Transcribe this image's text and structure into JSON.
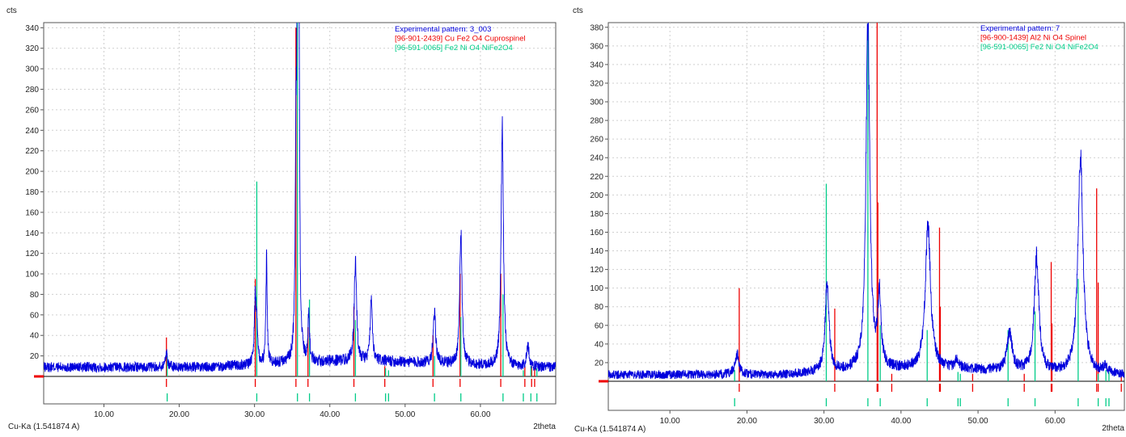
{
  "chart_data": [
    {
      "type": "line",
      "xlabel": "2theta",
      "ylabel": "cts",
      "xlim": [
        2,
        70
      ],
      "ylim": [
        0,
        345
      ],
      "x_ticks": [
        "10.00",
        "20.00",
        "30.00",
        "40.00",
        "50.00",
        "60.00"
      ],
      "y_ticks": [
        "20",
        "40",
        "60",
        "80",
        "100",
        "120",
        "140",
        "160",
        "180",
        "200",
        "220",
        "240",
        "260",
        "280",
        "300",
        "320",
        "340"
      ],
      "footer": "Cu-Ka (1.541874 A)",
      "legend_position": "top-right",
      "grid": true,
      "series": [
        {
          "name": "Experimental pattern: 3_003",
          "color": "#0000dd",
          "baseline": 9,
          "peaks": [
            [
              18.3,
              14,
              0.18
            ],
            [
              30.1,
              60,
              0.15
            ],
            [
              30.3,
              35,
              0.12
            ],
            [
              31.6,
              105,
              0.1
            ],
            [
              35.5,
              178,
              0.12
            ],
            [
              35.7,
              330,
              0.1
            ],
            [
              35.9,
              310,
              0.1
            ],
            [
              37.2,
              48,
              0.12
            ],
            [
              43.4,
              100,
              0.18
            ],
            [
              45.5,
              65,
              0.15
            ],
            [
              53.9,
              48,
              0.2
            ],
            [
              57.4,
              130,
              0.18
            ],
            [
              62.9,
              240,
              0.18
            ],
            [
              66.3,
              20,
              0.2
            ]
          ]
        },
        {
          "name": "[96-901-2439] Cu Fe2 O4  Cuprospinel",
          "color": "#ee0000",
          "sticks": [
            [
              18.3,
              38
            ],
            [
              30.1,
              95
            ],
            [
              35.5,
              340
            ],
            [
              37.1,
              48
            ],
            [
              43.2,
              68
            ],
            [
              47.3,
              10
            ],
            [
              53.7,
              40
            ],
            [
              57.3,
              100
            ],
            [
              62.7,
              100
            ],
            [
              65.9,
              10
            ],
            [
              66.8,
              10
            ],
            [
              67.2,
              8
            ]
          ]
        },
        {
          "name": "[96-591-0065] Fe2 Ni O4 NiFe2O4",
          "color": "#00cc88",
          "sticks": [
            [
              18.4,
              20
            ],
            [
              30.3,
              190
            ],
            [
              35.7,
              345
            ],
            [
              37.3,
              75
            ],
            [
              43.4,
              55
            ],
            [
              47.4,
              8
            ],
            [
              47.8,
              6
            ],
            [
              53.9,
              20
            ],
            [
              57.4,
              58
            ],
            [
              63.0,
              80
            ],
            [
              65.7,
              6
            ],
            [
              66.7,
              10
            ],
            [
              67.5,
              8
            ]
          ]
        }
      ]
    },
    {
      "type": "line",
      "xlabel": "2theta",
      "ylabel": "cts",
      "xlim": [
        2,
        69
      ],
      "ylim": [
        0,
        385
      ],
      "x_ticks": [
        "10.00",
        "20.00",
        "30.00",
        "40.00",
        "50.00",
        "60.00"
      ],
      "y_ticks": [
        "20",
        "40",
        "60",
        "80",
        "100",
        "120",
        "140",
        "160",
        "180",
        "200",
        "220",
        "240",
        "260",
        "280",
        "300",
        "320",
        "340",
        "360",
        "380"
      ],
      "footer": "Cu-Ka (1.541874 A)",
      "legend_position": "top-right",
      "grid": true,
      "series": [
        {
          "name": "Experimental pattern: 7",
          "color": "#0000dd",
          "baseline": 7,
          "peaks": [
            [
              18.7,
              22,
              0.3
            ],
            [
              30.4,
              95,
              0.3
            ],
            [
              35.7,
              375,
              0.3
            ],
            [
              37.2,
              75,
              0.25
            ],
            [
              43.5,
              155,
              0.4
            ],
            [
              47.3,
              10,
              0.3
            ],
            [
              54.1,
              40,
              0.4
            ],
            [
              57.6,
              125,
              0.35
            ],
            [
              63.3,
              235,
              0.4
            ],
            [
              66.5,
              8,
              0.3
            ]
          ]
        },
        {
          "name": "[96-900-1439] Al2 Ni O4  Spinel",
          "color": "#ee0000",
          "sticks": [
            [
              19.0,
              100
            ],
            [
              31.4,
              78
            ],
            [
              36.9,
              385
            ],
            [
              37.0,
              192
            ],
            [
              38.8,
              8
            ],
            [
              45.0,
              165
            ],
            [
              45.1,
              80
            ],
            [
              49.3,
              8
            ],
            [
              56.0,
              8
            ],
            [
              59.5,
              128
            ],
            [
              59.6,
              62
            ],
            [
              65.4,
              207
            ],
            [
              65.6,
              106
            ],
            [
              68.6,
              8
            ]
          ]
        },
        {
          "name": "[96-591-0065] Fe2 Ni O4 NiFe2O4",
          "color": "#00cc88",
          "sticks": [
            [
              18.4,
              12
            ],
            [
              30.3,
              212
            ],
            [
              35.7,
              384
            ],
            [
              37.3,
              60
            ],
            [
              43.4,
              55
            ],
            [
              47.4,
              10
            ],
            [
              47.7,
              8
            ],
            [
              53.9,
              55
            ],
            [
              57.4,
              75
            ],
            [
              63.0,
              110
            ],
            [
              65.6,
              8
            ],
            [
              66.6,
              12
            ],
            [
              67.0,
              10
            ]
          ]
        }
      ]
    }
  ]
}
